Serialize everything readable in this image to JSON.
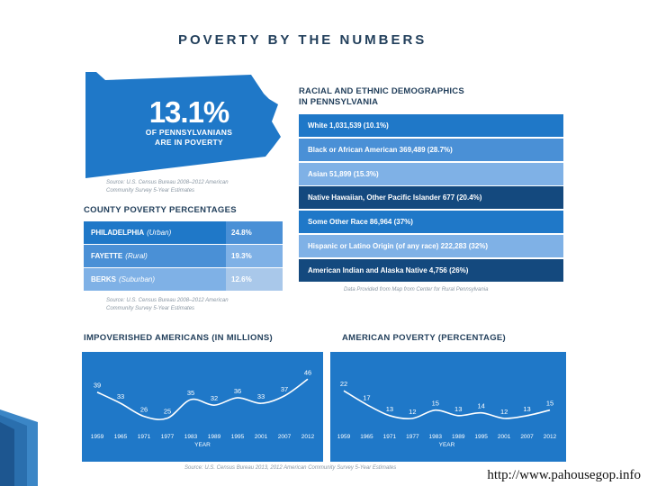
{
  "title": "POVERTY BY THE NUMBERS",
  "headline": {
    "percent": "13.1%",
    "line1": "OF PENNSYLVANIANS",
    "line2": "ARE IN POVERTY",
    "source_line1": "Source: U.S. Census Bureau 2008–2012 American",
    "source_line2": "Community Survey 5-Year Estimates"
  },
  "county": {
    "title": "COUNTY POVERTY PERCENTAGES",
    "rows": [
      {
        "name": "PHILADELPHIA",
        "type": "(Urban)",
        "value": "24.8%"
      },
      {
        "name": "FAYETTE",
        "type": "(Rural)",
        "value": "19.3%"
      },
      {
        "name": "BERKS",
        "type": "(Suburban)",
        "value": "12.6%"
      }
    ],
    "source_line1": "Source: U.S. Census Bureau 2008–2012 American",
    "source_line2": "Community Survey 5-Year Estimates"
  },
  "demographics": {
    "title_line1": "RACIAL AND ETHNIC DEMOGRAPHICS",
    "title_line2": "IN PENNSYLVANIA",
    "rows": [
      "White 1,031,539 (10.1%)",
      "Black or African American 369,489 (28.7%)",
      "Asian 51,899 (15.3%)",
      "Native Hawaiian, Other Pacific Islander 677 (20.4%)",
      "Some Other Race 86,964 (37%)",
      "Hispanic or Latino Origin (of any race) 222,283 (32%)",
      "American Indian and Alaska Native 4,756 (26%)"
    ],
    "row_colors": [
      "#1f78c8",
      "#4a90d6",
      "#7fb1e6",
      "#14497e",
      "#1f78c8",
      "#7fb1e6",
      "#14497e"
    ],
    "source": "Data Provided from Map from Center for Rural Pennsylvania"
  },
  "colors": {
    "blue": "#1f78c8",
    "dark_blue": "#14497e",
    "light_blue": "#7fb1e6",
    "pale_blue": "#a9c8ea"
  },
  "chart_data": [
    {
      "type": "line",
      "title": "IMPOVERISHED AMERICANS (IN MILLIONS)",
      "xlabel": "YEAR",
      "ylabel": "",
      "x": [
        "1959",
        "1965",
        "1971",
        "1977",
        "1983",
        "1989",
        "1995",
        "2001",
        "2007",
        "2012"
      ],
      "values": [
        39,
        33,
        26,
        25,
        35,
        32,
        36,
        33,
        37,
        46
      ],
      "ylim": [
        20,
        50
      ],
      "grid": false
    },
    {
      "type": "line",
      "title": "AMERICAN POVERTY (PERCENTAGE)",
      "xlabel": "YEAR",
      "ylabel": "",
      "x": [
        "1959",
        "1965",
        "1971",
        "1977",
        "1983",
        "1989",
        "1995",
        "2001",
        "2007",
        "2012"
      ],
      "values": [
        22,
        17,
        13,
        12,
        15,
        13,
        14,
        12,
        13,
        15
      ],
      "ylim": [
        10,
        25
      ],
      "grid": false
    }
  ],
  "bottom_source": "Source: U.S. Census Bureau 2013, 2012 American Community Survey 5-Year Estimates",
  "url": "http://www.pahousegop.info"
}
